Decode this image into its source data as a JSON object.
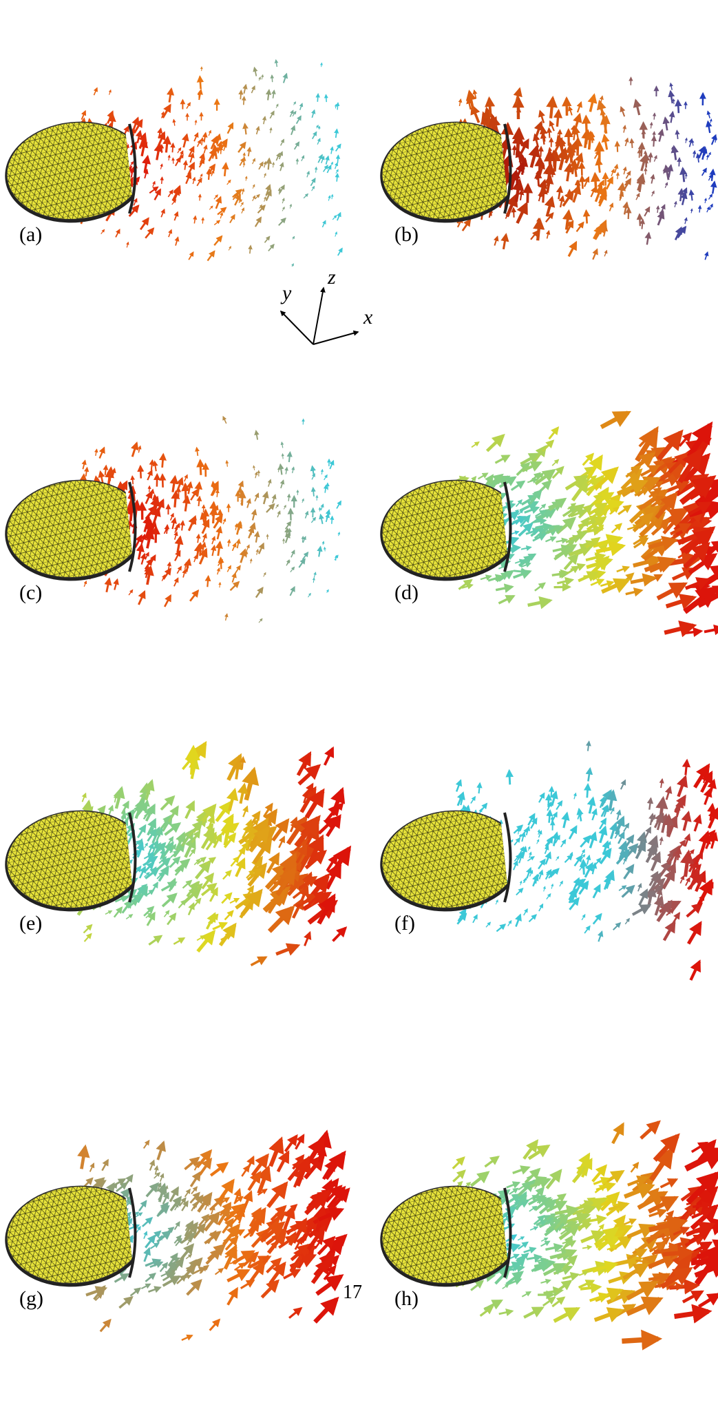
{
  "panels": [
    {
      "label": "(a)"
    },
    {
      "label": "(b)"
    },
    {
      "label": "(c)"
    },
    {
      "label": "(d)"
    },
    {
      "label": "(e)"
    },
    {
      "label": "(f)"
    },
    {
      "label": "(g)"
    },
    {
      "label": "(h)"
    }
  ],
  "axes": {
    "x": "x",
    "y": "y",
    "z": "z"
  },
  "page_number": "17"
}
